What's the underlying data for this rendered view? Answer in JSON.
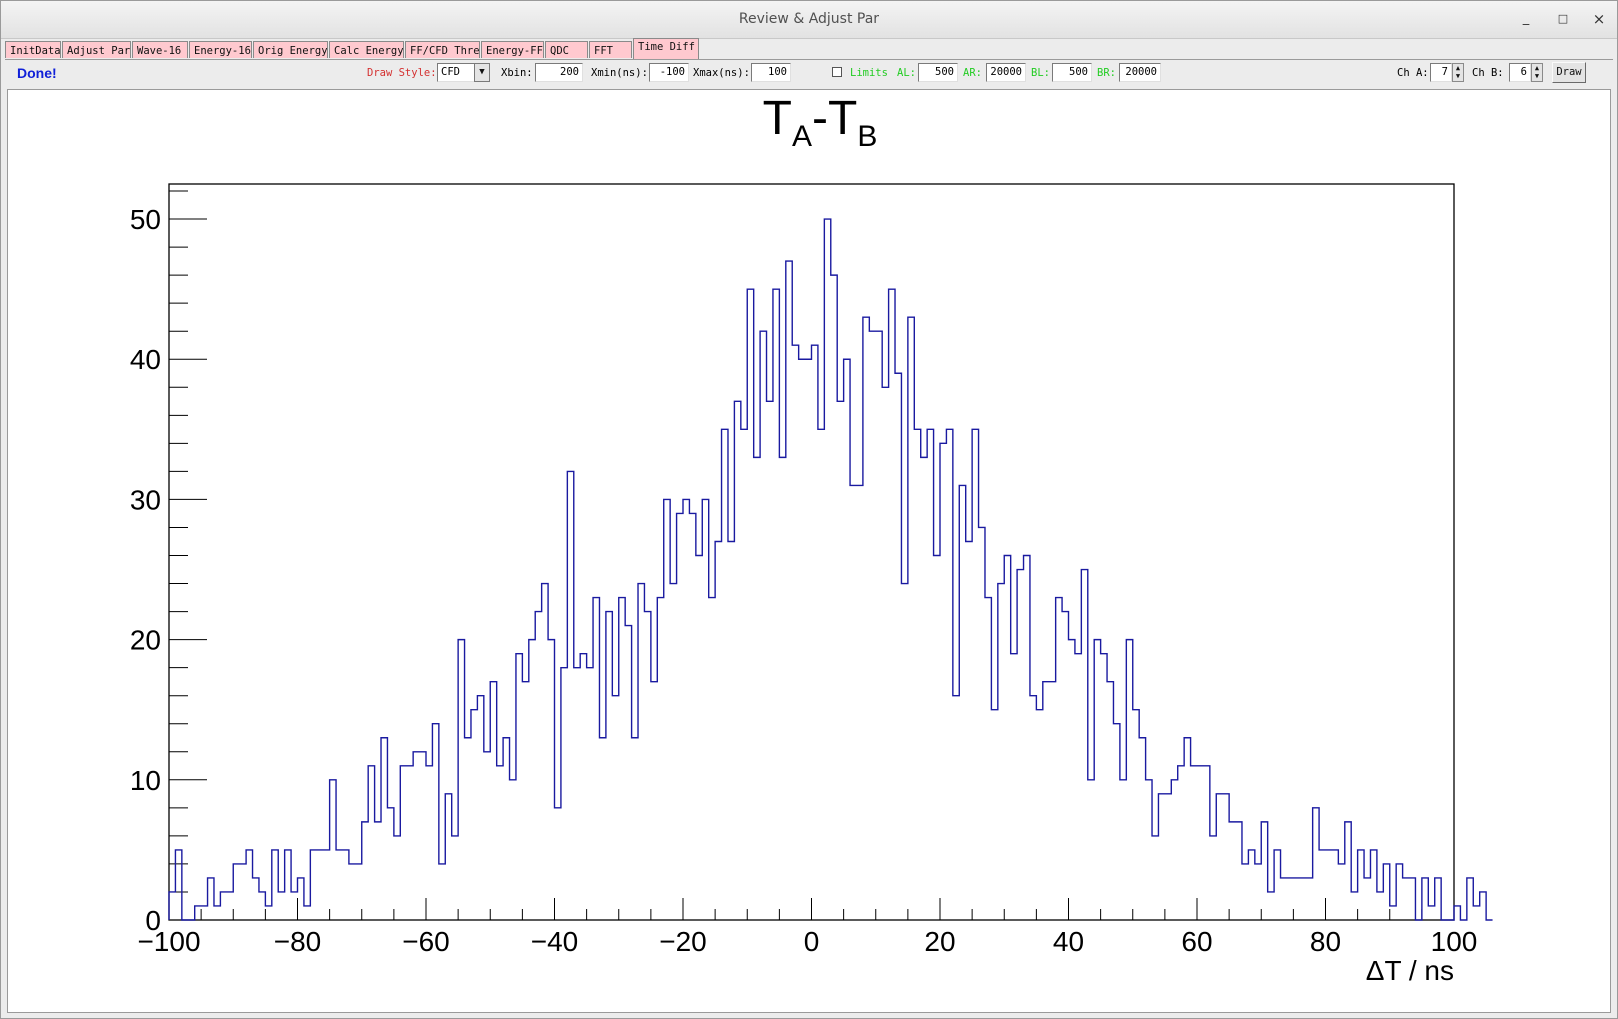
{
  "window": {
    "title": "Review & Adjust Par",
    "minimize_glyph": "_",
    "maximize_glyph": "□",
    "close_glyph": "×"
  },
  "tabs": [
    {
      "label": "InitData",
      "active": false
    },
    {
      "label": "Adjust Par",
      "active": false
    },
    {
      "label": "Wave-16",
      "active": false
    },
    {
      "label": "Energy-16",
      "active": false
    },
    {
      "label": "Orig Energy",
      "active": false
    },
    {
      "label": "Calc Energy",
      "active": false
    },
    {
      "label": "FF/CFD Thre",
      "active": false
    },
    {
      "label": "Energy-FF",
      "active": false
    },
    {
      "label": "QDC",
      "active": false
    },
    {
      "label": "FFT",
      "active": false
    },
    {
      "label": "Time Diff",
      "active": true
    }
  ],
  "toolbar": {
    "status": "Done!",
    "draw_style_label": "Draw Style:",
    "draw_style_value": "CFD",
    "dropdown_icon": "▼",
    "xbin_label": "Xbin:",
    "xbin_value": "200",
    "xmin_label": "Xmin(ns):",
    "xmin_value": "-100",
    "xmax_label": "Xmax(ns):",
    "xmax_value": "100",
    "limits_label": "Limits",
    "limits_checked": false,
    "al_label": "AL:",
    "al_value": "500",
    "ar_label": "AR:",
    "ar_value": "20000",
    "bl_label": "BL:",
    "bl_value": "500",
    "br_label": "BR:",
    "br_value": "20000",
    "cha_label": "Ch A:",
    "cha_value": "7",
    "chb_label": "Ch B:",
    "chb_value": "6",
    "spin_up_icon": "▲",
    "spin_down_icon": "▼",
    "draw_button": "Draw"
  },
  "colors": {
    "hist_line": "#1a1aa0",
    "tab_bg": "#ffc9cf",
    "status": "#1020d8",
    "draw_style_label": "#d43030",
    "limits_labels": "#22cc22"
  },
  "chart_data": {
    "type": "histogram",
    "title": "T_A-T_B",
    "title_main_1": "T",
    "title_sub_1": "A",
    "title_sep": "-",
    "title_main_2": "T",
    "title_sub_2": "B",
    "xlabel": "ΔT / ns",
    "ylabel": "",
    "xlim": [
      -100,
      100
    ],
    "ylim": [
      0,
      52.5
    ],
    "xticks": [
      -100,
      -80,
      -60,
      -40,
      -20,
      0,
      20,
      40,
      60,
      80,
      100
    ],
    "xtick_labels": [
      "−100",
      "−80",
      "−60",
      "−40",
      "−20",
      "0",
      "20",
      "40",
      "60",
      "80",
      "100"
    ],
    "yticks": [
      0,
      10,
      20,
      30,
      40,
      50
    ],
    "ytick_labels": [
      "0",
      "10",
      "20",
      "30",
      "40",
      "50"
    ],
    "bin_width": 1,
    "bins": 200,
    "x_start": -100,
    "counts": [
      2,
      5,
      0,
      0,
      1,
      1,
      3,
      1,
      2,
      2,
      4,
      4,
      5,
      3,
      2,
      1,
      5,
      2,
      5,
      2,
      3,
      1,
      5,
      5,
      5,
      10,
      5,
      5,
      4,
      4,
      7,
      11,
      7,
      13,
      8,
      6,
      11,
      11,
      12,
      12,
      11,
      14,
      4,
      9,
      6,
      20,
      13,
      15,
      16,
      12,
      17,
      11,
      13,
      10,
      19,
      17,
      20,
      22,
      24,
      20,
      8,
      18,
      32,
      18,
      19,
      18,
      23,
      13,
      22,
      16,
      23,
      21,
      13,
      24,
      22,
      17,
      23,
      30,
      24,
      29,
      30,
      29,
      26,
      30,
      23,
      27,
      35,
      27,
      37,
      35,
      45,
      33,
      42,
      37,
      45,
      33,
      47,
      41,
      40,
      40,
      41,
      35,
      50,
      46,
      37,
      40,
      31,
      31,
      43,
      42,
      42,
      38,
      45,
      39,
      24,
      43,
      35,
      33,
      35,
      26,
      34,
      35,
      16,
      31,
      27,
      35,
      28,
      23,
      15,
      24,
      26,
      19,
      25,
      26,
      16,
      15,
      17,
      17,
      23,
      22,
      20,
      19,
      25,
      10,
      20,
      19,
      17,
      14,
      10,
      20,
      15,
      13,
      10,
      6,
      9,
      9,
      10,
      11,
      13,
      11,
      11,
      11,
      6,
      9,
      9,
      7,
      7,
      4,
      5,
      4,
      7,
      2,
      5,
      3,
      3,
      3,
      3,
      3,
      8,
      5,
      5,
      5,
      4,
      7,
      2,
      5,
      3,
      5,
      2,
      4,
      1,
      4,
      3,
      3,
      0,
      3,
      1,
      3,
      0,
      0,
      1,
      0,
      3,
      1,
      2,
      0
    ]
  }
}
